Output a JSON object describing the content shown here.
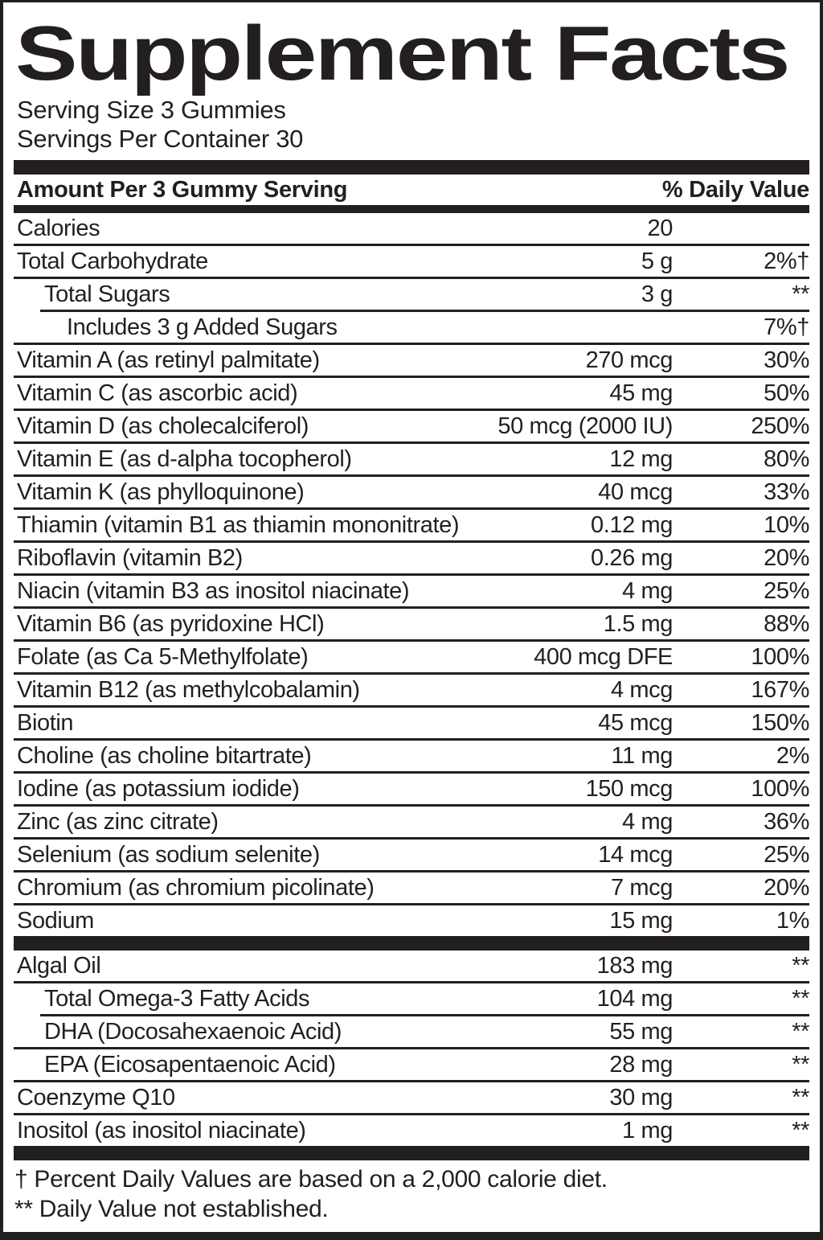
{
  "title": "Supplement Facts",
  "serving_info": {
    "serving_size": "Serving Size 3 Gummies",
    "servings_per_container": "Servings Per Container 30"
  },
  "table_header": {
    "amount_label": "Amount Per 3 Gummy Serving",
    "daily_value_label": "% Daily Value"
  },
  "sections": [
    {
      "name": "vitamins-and-minerals",
      "rows": [
        {
          "name": "Calories",
          "amount": "20",
          "dv": "",
          "indent": 0,
          "sep": "none"
        },
        {
          "name": "Total Carbohydrate",
          "amount": "5 g",
          "dv": "2%†",
          "indent": 0,
          "sep": "full"
        },
        {
          "name": "Total Sugars",
          "amount": "3 g",
          "dv": "**",
          "indent": 1,
          "sep": "full"
        },
        {
          "name": "Includes 3 g Added Sugars",
          "amount": "",
          "dv": "7%†",
          "indent": 2,
          "sep": "indent"
        },
        {
          "name": "Vitamin A (as retinyl palmitate)",
          "amount": "270 mcg",
          "dv": "30%",
          "indent": 0,
          "sep": "full"
        },
        {
          "name": "Vitamin C (as ascorbic acid)",
          "amount": "45 mg",
          "dv": "50%",
          "indent": 0,
          "sep": "full"
        },
        {
          "name": "Vitamin D (as cholecalciferol)",
          "amount": "50 mcg (2000 IU)",
          "dv": "250%",
          "indent": 0,
          "sep": "full"
        },
        {
          "name": "Vitamin E (as d-alpha tocopherol)",
          "amount": "12 mg",
          "dv": "80%",
          "indent": 0,
          "sep": "full"
        },
        {
          "name": "Vitamin K (as phylloquinone)",
          "amount": "40 mcg",
          "dv": "33%",
          "indent": 0,
          "sep": "full"
        },
        {
          "name": "Thiamin (vitamin B1 as thiamin mononitrate)",
          "amount": "0.12 mg",
          "dv": "10%",
          "indent": 0,
          "sep": "full"
        },
        {
          "name": "Riboflavin (vitamin B2)",
          "amount": "0.26 mg",
          "dv": "20%",
          "indent": 0,
          "sep": "full"
        },
        {
          "name": "Niacin (vitamin B3 as inositol niacinate)",
          "amount": "4 mg",
          "dv": "25%",
          "indent": 0,
          "sep": "full"
        },
        {
          "name": "Vitamin B6 (as pyridoxine HCl)",
          "amount": "1.5 mg",
          "dv": "88%",
          "indent": 0,
          "sep": "full"
        },
        {
          "name": "Folate (as Ca 5-Methylfolate)",
          "amount": "400 mcg DFE",
          "dv": "100%",
          "indent": 0,
          "sep": "full"
        },
        {
          "name": "Vitamin B12 (as methylcobalamin)",
          "amount": "4 mcg",
          "dv": "167%",
          "indent": 0,
          "sep": "full"
        },
        {
          "name": "Biotin",
          "amount": "45 mcg",
          "dv": "150%",
          "indent": 0,
          "sep": "full"
        },
        {
          "name": "Choline (as choline bitartrate)",
          "amount": "11 mg",
          "dv": "2%",
          "indent": 0,
          "sep": "full"
        },
        {
          "name": "Iodine (as potassium iodide)",
          "amount": "150 mcg",
          "dv": "100%",
          "indent": 0,
          "sep": "full"
        },
        {
          "name": "Zinc (as zinc citrate)",
          "amount": "4 mg",
          "dv": "36%",
          "indent": 0,
          "sep": "full"
        },
        {
          "name": "Selenium (as sodium selenite)",
          "amount": "14 mcg",
          "dv": "25%",
          "indent": 0,
          "sep": "full"
        },
        {
          "name": "Chromium (as chromium picolinate)",
          "amount": "7 mcg",
          "dv": "20%",
          "indent": 0,
          "sep": "full"
        },
        {
          "name": "Sodium",
          "amount": "15 mg",
          "dv": "1%",
          "indent": 0,
          "sep": "full"
        }
      ]
    },
    {
      "name": "specialty-ingredients",
      "rows": [
        {
          "name": "Algal Oil",
          "amount": "183 mg",
          "dv": "**",
          "indent": 0,
          "sep": "none"
        },
        {
          "name": "Total Omega-3 Fatty Acids",
          "amount": "104 mg",
          "dv": "**",
          "indent": 1,
          "sep": "full"
        },
        {
          "name": "DHA (Docosahexaenoic Acid)",
          "amount": "55 mg",
          "dv": "**",
          "indent": 1,
          "sep": "indent"
        },
        {
          "name": "EPA (Eicosapentaenoic Acid)",
          "amount": "28 mg",
          "dv": "**",
          "indent": 1,
          "sep": "full"
        },
        {
          "name": "Coenzyme Q10",
          "amount": "30 mg",
          "dv": "**",
          "indent": 0,
          "sep": "full"
        },
        {
          "name": "Inositol (as inositol niacinate)",
          "amount": "1 mg",
          "dv": "**",
          "indent": 0,
          "sep": "full"
        }
      ]
    }
  ],
  "footnotes": [
    "† Percent Daily Values are based on a 2,000 calorie diet.",
    "** Daily Value not established."
  ],
  "colors": {
    "ink": "#231f20",
    "background": "#ffffff"
  }
}
